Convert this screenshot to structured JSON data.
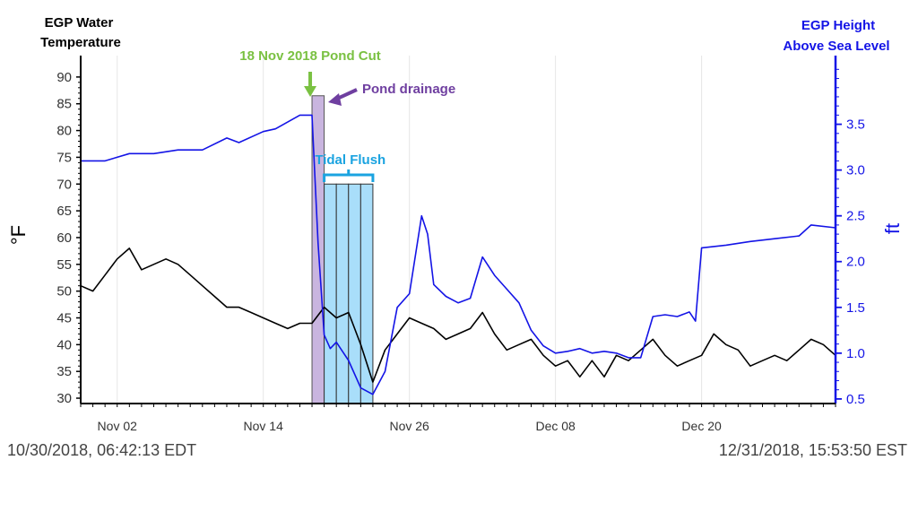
{
  "colors": {
    "height": "#1414e6",
    "temp": "#000000",
    "pond_cut": "#7ac142",
    "drainage": "#6f3fa0",
    "drainage_fill": "#c9b5df",
    "tidal": "#1aa3e0",
    "tidal_fill": "#a9defa",
    "grid": "#e6e6e6"
  },
  "timestamps": {
    "start": "10/30/2018, 06:42:13 EDT",
    "end": "12/31/2018, 15:53:50 EST"
  },
  "chart_data": {
    "type": "line",
    "left_axis_title": [
      "EGP Water",
      "Temperature"
    ],
    "right_axis_title": [
      "EGP Height",
      "Above Sea Level"
    ],
    "ylabel": "°F",
    "y2label": "ft",
    "x_range": [
      "2018-10-30",
      "2018-12-31"
    ],
    "ylim": [
      29,
      94
    ],
    "y2lim": [
      0.45,
      4.25
    ],
    "x_ticks": [
      {
        "label": "Nov 02",
        "date": "2018-11-02"
      },
      {
        "label": "Nov 14",
        "date": "2018-11-14"
      },
      {
        "label": "Nov 26",
        "date": "2018-11-26"
      },
      {
        "label": "Dec 08",
        "date": "2018-12-08"
      },
      {
        "label": "Dec 20",
        "date": "2018-12-20"
      }
    ],
    "y_ticks": [
      30,
      35,
      40,
      45,
      50,
      55,
      60,
      65,
      70,
      75,
      80,
      85,
      90
    ],
    "y2_ticks": [
      "0.5",
      "1.0",
      "1.5",
      "2.0",
      "2.5",
      "3.0",
      "3.5"
    ],
    "grid_x": true,
    "series": [
      {
        "axis": "right",
        "x": [
          "2018-10-30",
          "2018-11-01",
          "2018-11-03",
          "2018-11-05",
          "2018-11-07",
          "2018-11-09",
          "2018-11-11",
          "2018-11-12",
          "2018-11-14",
          "2018-11-15",
          "2018-11-17",
          "2018-11-18",
          "2018-11-18T12:00",
          "2018-11-19",
          "2018-11-19T12:00",
          "2018-11-20",
          "2018-11-21",
          "2018-11-22",
          "2018-11-23",
          "2018-11-24",
          "2018-11-25",
          "2018-11-26",
          "2018-11-27",
          "2018-11-27T12:00",
          "2018-11-28",
          "2018-11-29",
          "2018-11-30",
          "2018-12-01",
          "2018-12-02",
          "2018-12-03",
          "2018-12-04",
          "2018-12-05",
          "2018-12-06",
          "2018-12-07",
          "2018-12-08",
          "2018-12-09",
          "2018-12-10",
          "2018-12-11",
          "2018-12-12",
          "2018-12-13",
          "2018-12-14",
          "2018-12-15",
          "2018-12-16",
          "2018-12-17",
          "2018-12-18",
          "2018-12-19",
          "2018-12-19T12:00",
          "2018-12-20",
          "2018-12-22",
          "2018-12-24",
          "2018-12-26",
          "2018-12-28",
          "2018-12-29",
          "2018-12-31"
        ],
        "y": [
          3.1,
          3.1,
          3.18,
          3.18,
          3.22,
          3.22,
          3.35,
          3.3,
          3.42,
          3.45,
          3.6,
          3.6,
          2.2,
          1.2,
          1.05,
          1.12,
          0.92,
          0.62,
          0.55,
          0.8,
          1.5,
          1.65,
          2.5,
          2.3,
          1.75,
          1.62,
          1.55,
          1.6,
          2.05,
          1.85,
          1.7,
          1.55,
          1.25,
          1.08,
          1.0,
          1.02,
          1.05,
          1.0,
          1.02,
          1.0,
          0.95,
          0.95,
          1.4,
          1.42,
          1.4,
          1.45,
          1.35,
          2.15,
          2.18,
          2.22,
          2.25,
          2.28,
          2.4,
          2.37
        ]
      },
      {
        "axis": "left",
        "x": [
          "2018-10-30",
          "2018-10-31",
          "2018-11-01",
          "2018-11-02",
          "2018-11-03",
          "2018-11-04",
          "2018-11-05",
          "2018-11-06",
          "2018-11-07",
          "2018-11-08",
          "2018-11-09",
          "2018-11-10",
          "2018-11-11",
          "2018-11-12",
          "2018-11-13",
          "2018-11-14",
          "2018-11-15",
          "2018-11-16",
          "2018-11-17",
          "2018-11-18",
          "2018-11-19",
          "2018-11-20",
          "2018-11-21",
          "2018-11-22",
          "2018-11-23",
          "2018-11-24",
          "2018-11-25",
          "2018-11-26",
          "2018-11-27",
          "2018-11-28",
          "2018-11-29",
          "2018-11-30",
          "2018-12-01",
          "2018-12-02",
          "2018-12-03",
          "2018-12-04",
          "2018-12-05",
          "2018-12-06",
          "2018-12-07",
          "2018-12-08",
          "2018-12-09",
          "2018-12-10",
          "2018-12-11",
          "2018-12-12",
          "2018-12-13",
          "2018-12-14",
          "2018-12-15",
          "2018-12-16",
          "2018-12-17",
          "2018-12-18",
          "2018-12-19",
          "2018-12-20",
          "2018-12-21",
          "2018-12-22",
          "2018-12-23",
          "2018-12-24",
          "2018-12-25",
          "2018-12-26",
          "2018-12-27",
          "2018-12-28",
          "2018-12-29",
          "2018-12-30",
          "2018-12-31"
        ],
        "y": [
          51,
          50,
          53,
          56,
          58,
          54,
          55,
          56,
          55,
          53,
          51,
          49,
          47,
          47,
          46,
          45,
          44,
          43,
          44,
          44,
          47,
          45,
          46,
          40,
          33,
          39,
          42,
          45,
          44,
          43,
          41,
          42,
          43,
          46,
          42,
          39,
          40,
          41,
          38,
          36,
          37,
          34,
          37,
          34,
          38,
          37,
          39,
          41,
          38,
          36,
          37,
          38,
          42,
          40,
          39,
          36,
          37,
          38,
          37,
          39,
          41,
          40,
          38
        ]
      }
    ],
    "annotations": [
      {
        "text": "18 Nov 2018 Pond Cut",
        "date": "2018-11-18",
        "kind": "arrow-down"
      },
      {
        "text": "Pond drainage",
        "from": "2018-11-18",
        "to": "2018-11-19",
        "top_value": 86.5,
        "kind": "band"
      },
      {
        "text": "Tidal Flush",
        "kind": "bands",
        "top_value": 70,
        "bands": [
          [
            "2018-11-19",
            "2018-11-20"
          ],
          [
            "2018-11-20",
            "2018-11-21"
          ],
          [
            "2018-11-21",
            "2018-11-22"
          ],
          [
            "2018-11-22",
            "2018-11-23"
          ]
        ]
      }
    ]
  }
}
